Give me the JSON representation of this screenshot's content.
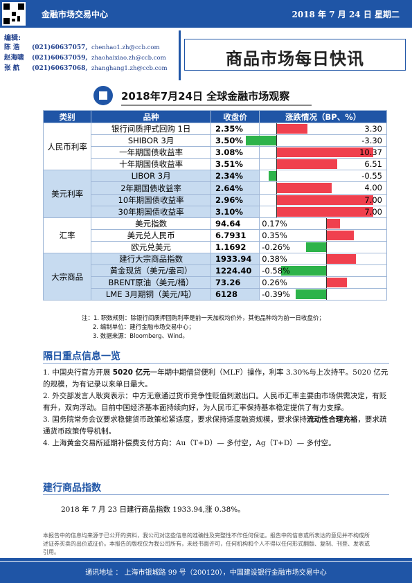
{
  "header": {
    "org": "金融市场交易中心",
    "date": "2018 年 7 月 24 日  星期二"
  },
  "editors": {
    "label": "编辑:",
    "people": [
      {
        "name": "陈  浩",
        "phone": "(021)60637057,",
        "email": "chenhao1.zh@ccb.com"
      },
      {
        "name": "赵海啸",
        "phone": "(021)60637059,",
        "email": "zhaohaixiao.zh@ccb.com"
      },
      {
        "name": "张  航",
        "phone": "(021)60637068,",
        "email": "zhanghang1.zh@ccb.com"
      }
    ]
  },
  "bulletin_title": "商品市场每日快讯",
  "table": {
    "title": "2018年7月24日 全球金融市场观察",
    "headers": [
      "类别",
      "品种",
      "收盘价",
      "涨跌情况（BP、%）"
    ],
    "groups": [
      {
        "category": "人民币利率",
        "rows": [
          {
            "name": "银行间质押式回购 1日",
            "price": "2.35%",
            "change": "3.30",
            "value": 3.3
          },
          {
            "name": "SHIBOR 3月",
            "price": "3.50%",
            "change": "-3.30",
            "value": -3.3
          },
          {
            "name": "一年期国债收益率",
            "price": "3.08%",
            "change": "10.37",
            "value": 10.37
          },
          {
            "name": "十年期国债收益率",
            "price": "3.51%",
            "change": "6.51",
            "value": 6.51
          }
        ]
      },
      {
        "category": "美元利率",
        "rows": [
          {
            "name": "LIBOR 3月",
            "price": "2.34%",
            "change": "-0.55",
            "value": -0.55
          },
          {
            "name": "2年期国债收益率",
            "price": "2.64%",
            "change": "4.00",
            "value": 4.0
          },
          {
            "name": "10年期国债收益率",
            "price": "2.96%",
            "change": "7.00",
            "value": 7.0
          },
          {
            "name": "30年期国债收益率",
            "price": "3.10%",
            "change": "7.00",
            "value": 7.0
          }
        ]
      },
      {
        "category": "汇率",
        "rows": [
          {
            "name": "美元指数",
            "price": "94.64",
            "change": "0.17%",
            "value": 0.17
          },
          {
            "name": "美元兑人民币",
            "price": "6.7931",
            "change": "0.35%",
            "value": 0.35
          },
          {
            "name": "欧元兑美元",
            "price": "1.1692",
            "change": "-0.26%",
            "value": -0.26
          }
        ]
      },
      {
        "category": "大宗商品",
        "rows": [
          {
            "name": "建行大宗商品指数",
            "price": "1933.94",
            "change": "0.38%",
            "value": 0.38
          },
          {
            "name": "黄金现货（美元/盎司）",
            "price": "1224.40",
            "change": "-0.58%",
            "value": -0.58
          },
          {
            "name": "BRENT原油（美元/桶）",
            "price": "73.26",
            "change": "0.26%",
            "value": 0.26
          },
          {
            "name": "LME 3月期铜（美元/吨）",
            "price": "6128",
            "change": "-0.39%",
            "value": -0.39
          }
        ]
      }
    ],
    "colors": {
      "up": "#f0404e",
      "down": "#2db34a",
      "header": "#1f55a6",
      "alt_row": "#c7dbf0"
    }
  },
  "notes": {
    "prefix": "注：",
    "items": [
      "1. 职数规则：除银行间质押回购利率是前一天加权均价外，其他品种均为前一日收盘价；",
      "2. 编制单位：建行金融市场交易中心；",
      "3. 数据来源：Bloomberg、Wind。"
    ]
  },
  "news": {
    "heading": "隔日重点信息一览",
    "items": [
      {
        "pre": "1. 中国央行官方开展 ",
        "bold": "5020 亿元",
        "post": "一年期中期借贷便利（MLF）操作，利率 3.30%与上次持平。5020 亿元的规模，为有记录以来单日最大。"
      },
      {
        "pre": "2. 外交部发言人耿爽表示：中方无意通过货币竞争性贬值刺激出口。人民币汇率主要由市场供需决定，有贬有升，双向浮动。目前中国经济基本面持续向好，为人民币汇率保持基本稳定提供了有力支撑。",
        "bold": "",
        "post": ""
      },
      {
        "pre": "3. 国务院常务会议要求稳健货币政策松紧适度，要求保持适度融资规模，要求保持",
        "bold": "流动性合理充裕",
        "post": "，要求疏通货币政策传导机制。"
      },
      {
        "pre": "4. 上海黄金交易所延期补偿费支付方向：Au（T+D）— 多付空，Ag（T+D）— 多付空。",
        "bold": "",
        "post": ""
      }
    ]
  },
  "index": {
    "heading": "建行商品指数",
    "text": "2018 年 7 月 23 日建行商品指数 1933.94,涨 0.38%。"
  },
  "disclaimer": "本报告中的信息均来源于已公开的资料，我公司对这些信息的准确性及完整性不作任何保证。报告中的信息或所表达的意见并不构成所述证券买卖的出价或征价。本报告的版权仅为我公司所有，未经书面许可，任何机构和个人不得以任何形式翻版、复制、刊登、发表或引用。",
  "footer": "通讯地址 ： 上海市银城路 99 号（200120），中国建设银行金融市场交易中心"
}
